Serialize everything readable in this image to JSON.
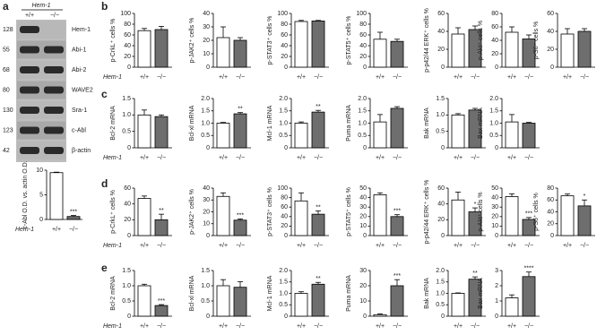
{
  "panel_labels": [
    "a",
    "b",
    "c",
    "d",
    "e"
  ],
  "blot": {
    "group_label": "Hem-1",
    "genotypes": [
      "+/+",
      "−/−"
    ],
    "sizes": [
      128,
      55,
      68,
      80,
      130,
      123,
      42
    ],
    "proteins": [
      "Hem-1",
      "Abi-1",
      "Abi-2",
      "WAVE2",
      "Sra-1",
      "c-Abl",
      "β-actin"
    ]
  },
  "chart_data": [
    {
      "type": "bar",
      "ylabel": "c-Abl O.D. vs. actin O.D.",
      "group_label": "Hem-1",
      "categories": [
        "+/+",
        "−/−"
      ],
      "values": [
        9.5,
        0.6
      ],
      "errors": [
        0.1,
        0.2
      ],
      "sig": "***",
      "colors": [
        "#ffffff",
        "#6e6e6e"
      ],
      "ylim": [
        0,
        10
      ],
      "yticks": [
        0,
        5,
        10
      ]
    },
    {
      "type": "bar",
      "ylabel": "p-CrkL⁺ cells %",
      "group_label": "Hem-1",
      "categories": [
        "+/+",
        "−/−"
      ],
      "values": [
        68,
        70
      ],
      "errors": [
        4,
        6
      ],
      "colors": [
        "#ffffff",
        "#6e6e6e"
      ],
      "ylim": [
        0,
        100
      ],
      "yticks": [
        0,
        20,
        40,
        60,
        80,
        100
      ]
    },
    {
      "type": "bar",
      "ylabel": "p-JAK2⁺ cells %",
      "categories": [
        "+/+",
        "−/−"
      ],
      "values": [
        22,
        20
      ],
      "errors": [
        8,
        2
      ],
      "colors": [
        "#ffffff",
        "#6e6e6e"
      ],
      "ylim": [
        0,
        40
      ],
      "yticks": [
        0,
        10,
        20,
        30,
        40
      ]
    },
    {
      "type": "bar",
      "ylabel": "p-STAT3⁺ cells %",
      "categories": [
        "+/+",
        "−/−"
      ],
      "values": [
        85,
        86
      ],
      "errors": [
        2,
        1
      ],
      "colors": [
        "#ffffff",
        "#6e6e6e"
      ],
      "ylim": [
        0,
        100
      ],
      "yticks": [
        0,
        20,
        40,
        60,
        80,
        100
      ]
    },
    {
      "type": "bar",
      "ylabel": "p-STAT5⁺ cells %",
      "categories": [
        "+/+",
        "−/−"
      ],
      "values": [
        52,
        48
      ],
      "errors": [
        13,
        4
      ],
      "colors": [
        "#ffffff",
        "#6e6e6e"
      ],
      "ylim": [
        0,
        100
      ],
      "yticks": [
        0,
        20,
        40,
        60,
        80,
        100
      ]
    },
    {
      "type": "bar",
      "ylabel": "p-p42/44 ERK⁺ cells %",
      "categories": [
        "+/+",
        "−/−"
      ],
      "values": [
        37,
        42
      ],
      "errors": [
        7,
        4
      ],
      "colors": [
        "#ffffff",
        "#6e6e6e"
      ],
      "ylim": [
        0,
        60
      ],
      "yticks": [
        0,
        20,
        40,
        60
      ]
    },
    {
      "type": "bar",
      "ylabel": "p-Akt⁺ cells %",
      "categories": [
        "+/+",
        "−/−"
      ],
      "values": [
        52,
        42
      ],
      "errors": [
        8,
        6
      ],
      "colors": [
        "#ffffff",
        "#6e6e6e"
      ],
      "ylim": [
        0,
        80
      ],
      "yticks": [
        0,
        20,
        40,
        60,
        80
      ]
    },
    {
      "type": "bar",
      "ylabel": "p-S6⁺ cells %",
      "categories": [
        "+/+",
        "−/−"
      ],
      "values": [
        37,
        40
      ],
      "errors": [
        6,
        3
      ],
      "colors": [
        "#ffffff",
        "#6e6e6e"
      ],
      "ylim": [
        0,
        60
      ],
      "yticks": [
        0,
        20,
        40,
        60
      ]
    },
    {
      "type": "bar",
      "ylabel": "Bcl-2 mRNA",
      "group_label": "Hem-1",
      "categories": [
        "+/+",
        "−/−"
      ],
      "values": [
        1.0,
        0.95
      ],
      "errors": [
        0.15,
        0.05
      ],
      "colors": [
        "#ffffff",
        "#6e6e6e"
      ],
      "ylim": [
        0,
        1.5
      ],
      "yticks": [
        0,
        0.5,
        {
          "value": 1,
          "label": "1.0"
        },
        1.5
      ]
    },
    {
      "type": "bar",
      "ylabel": "Bcl-xl mRNA",
      "categories": [
        "+/+",
        "−/−"
      ],
      "values": [
        1.0,
        1.38
      ],
      "errors": [
        0.03,
        0.05
      ],
      "sig": "**",
      "colors": [
        "#ffffff",
        "#6e6e6e"
      ],
      "ylim": [
        0,
        2
      ],
      "yticks": [
        0,
        0.5,
        {
          "value": 1,
          "label": "1.0"
        },
        1.5,
        {
          "value": 2,
          "label": "2.0"
        }
      ]
    },
    {
      "type": "bar",
      "ylabel": "Mcl-1 mRNA",
      "categories": [
        "+/+",
        "−/−"
      ],
      "values": [
        1.0,
        1.45
      ],
      "errors": [
        0.05,
        0.07
      ],
      "sig": "**",
      "colors": [
        "#ffffff",
        "#6e6e6e"
      ],
      "ylim": [
        0,
        2
      ],
      "yticks": [
        0,
        0.5,
        {
          "value": 1,
          "label": "1.0"
        },
        1.5,
        {
          "value": 2,
          "label": "2.0"
        }
      ]
    },
    {
      "type": "bar",
      "ylabel": "Puma mRNA",
      "categories": [
        "+/+",
        "−/−"
      ],
      "values": [
        1.05,
        1.6
      ],
      "errors": [
        0.3,
        0.07
      ],
      "colors": [
        "#ffffff",
        "#6e6e6e"
      ],
      "ylim": [
        0,
        2
      ],
      "yticks": [
        0,
        0.5,
        {
          "value": 1,
          "label": "1.0"
        },
        1.5,
        {
          "value": 2,
          "label": "2.0"
        }
      ]
    },
    {
      "type": "bar",
      "ylabel": "Bak mRNA",
      "categories": [
        "+/+",
        "−/−"
      ],
      "values": [
        1.0,
        1.15
      ],
      "errors": [
        0.04,
        0.05
      ],
      "colors": [
        "#ffffff",
        "#6e6e6e"
      ],
      "ylim": [
        0,
        1.5
      ],
      "yticks": [
        0,
        0.5,
        {
          "value": 1,
          "label": "1.0"
        },
        1.5
      ]
    },
    {
      "type": "bar",
      "ylabel": "Bax mRNA",
      "categories": [
        "+/+",
        "−/−"
      ],
      "values": [
        1.05,
        1.0
      ],
      "errors": [
        0.3,
        0.03
      ],
      "colors": [
        "#ffffff",
        "#6e6e6e"
      ],
      "ylim": [
        0,
        2
      ],
      "yticks": [
        0,
        0.5,
        {
          "value": 1,
          "label": "1.0"
        },
        1.5,
        {
          "value": 2,
          "label": "2.0"
        }
      ]
    },
    {
      "type": "bar",
      "ylabel": "p-CrkL⁺ cells %",
      "group_label": "Hem-1",
      "categories": [
        "+/+",
        "−/−"
      ],
      "values": [
        47,
        20
      ],
      "errors": [
        3,
        7
      ],
      "sig": "**",
      "colors": [
        "#ffffff",
        "#6e6e6e"
      ],
      "ylim": [
        0,
        60
      ],
      "yticks": [
        0,
        20,
        40,
        60
      ]
    },
    {
      "type": "bar",
      "ylabel": "p-JAK2⁺ cells %",
      "categories": [
        "+/+",
        "−/−"
      ],
      "values": [
        33,
        13
      ],
      "errors": [
        3,
        1
      ],
      "sig": "***",
      "colors": [
        "#ffffff",
        "#6e6e6e"
      ],
      "ylim": [
        0,
        40
      ],
      "yticks": [
        0,
        10,
        20,
        30,
        40
      ]
    },
    {
      "type": "bar",
      "ylabel": "p-STAT3⁺ cells %",
      "categories": [
        "+/+",
        "−/−"
      ],
      "values": [
        73,
        45
      ],
      "errors": [
        17,
        7
      ],
      "sig": "**",
      "colors": [
        "#ffffff",
        "#6e6e6e"
      ],
      "ylim": [
        0,
        100
      ],
      "yticks": [
        0,
        20,
        40,
        60,
        80,
        100
      ]
    },
    {
      "type": "bar",
      "ylabel": "p-STAT5⁺ cells %",
      "categories": [
        "+/+",
        "−/−"
      ],
      "values": [
        43,
        20
      ],
      "errors": [
        2,
        2
      ],
      "sig": "***",
      "colors": [
        "#ffffff",
        "#6e6e6e"
      ],
      "ylim": [
        0,
        50
      ],
      "yticks": [
        0,
        10,
        20,
        30,
        40,
        50
      ]
    },
    {
      "type": "bar",
      "ylabel": "p-p42/44 ERK⁺ cells %",
      "categories": [
        "+/+",
        "−/−"
      ],
      "values": [
        45,
        30
      ],
      "errors": [
        10,
        5
      ],
      "sig": "*",
      "colors": [
        "#ffffff",
        "#6e6e6e"
      ],
      "ylim": [
        0,
        60
      ],
      "yticks": [
        0,
        20,
        40,
        60
      ]
    },
    {
      "type": "bar",
      "ylabel": "p-Akt⁺ cells %",
      "categories": [
        "+/+",
        "−/−"
      ],
      "values": [
        41,
        17
      ],
      "errors": [
        3,
        2
      ],
      "sig": "***",
      "colors": [
        "#ffffff",
        "#6e6e6e"
      ],
      "ylim": [
        0,
        50
      ],
      "yticks": [
        0,
        10,
        20,
        30,
        40,
        50
      ]
    },
    {
      "type": "bar",
      "ylabel": "p-S6⁺ cells %",
      "categories": [
        "+/+",
        "−/−"
      ],
      "values": [
        67,
        50
      ],
      "errors": [
        3,
        10
      ],
      "sig": "*",
      "colors": [
        "#ffffff",
        "#6e6e6e"
      ],
      "ylim": [
        0,
        80
      ],
      "yticks": [
        0,
        20,
        40,
        60,
        80
      ]
    },
    {
      "type": "bar",
      "ylabel": "Bcl-2 mRNA",
      "group_label": "Hem-1",
      "categories": [
        "+/+",
        "−/−"
      ],
      "values": [
        1.0,
        0.35
      ],
      "errors": [
        0.05,
        0.03
      ],
      "sig": "***",
      "colors": [
        "#ffffff",
        "#6e6e6e"
      ],
      "ylim": [
        0,
        1.5
      ],
      "yticks": [
        0,
        0.5,
        {
          "value": 1,
          "label": "1.0"
        },
        1.5
      ]
    },
    {
      "type": "bar",
      "ylabel": "Bcl-xl mRNA",
      "categories": [
        "+/+",
        "−/−"
      ],
      "values": [
        1.0,
        0.95
      ],
      "errors": [
        0.2,
        0.18
      ],
      "colors": [
        "#ffffff",
        "#6e6e6e"
      ],
      "ylim": [
        0,
        1.5
      ],
      "yticks": [
        0,
        0.5,
        {
          "value": 1,
          "label": "1.0"
        },
        1.5
      ]
    },
    {
      "type": "bar",
      "ylabel": "Mcl-1 mRNA",
      "categories": [
        "+/+",
        "−/−"
      ],
      "values": [
        1.0,
        1.4
      ],
      "errors": [
        0.07,
        0.08
      ],
      "sig": "**",
      "colors": [
        "#ffffff",
        "#6e6e6e"
      ],
      "ylim": [
        0,
        2
      ],
      "yticks": [
        0,
        0.5,
        {
          "value": 1,
          "label": "1.0"
        },
        1.5,
        {
          "value": 2,
          "label": "2.0"
        }
      ]
    },
    {
      "type": "bar",
      "ylabel": "Puma mRNA",
      "categories": [
        "+/+",
        "−/−"
      ],
      "values": [
        1,
        20
      ],
      "errors": [
        0.5,
        4
      ],
      "sig": "***",
      "colors": [
        "#ffffff",
        "#6e6e6e"
      ],
      "ylim": [
        0,
        30
      ],
      "yticks": [
        0,
        10,
        20,
        30
      ]
    },
    {
      "type": "bar",
      "ylabel": "Bak mRNA",
      "categories": [
        "+/+",
        "−/−"
      ],
      "values": [
        1.0,
        1.62
      ],
      "errors": [
        0.02,
        0.1
      ],
      "sig": "**",
      "colors": [
        "#ffffff",
        "#6e6e6e"
      ],
      "ylim": [
        0,
        2
      ],
      "yticks": [
        0,
        0.5,
        {
          "value": 1,
          "label": "1.0"
        },
        1.5,
        {
          "value": 2,
          "label": "2.0"
        }
      ]
    },
    {
      "type": "bar",
      "ylabel": "Bax mRNA",
      "categories": [
        "+/+",
        "−/−"
      ],
      "values": [
        1.2,
        2.6
      ],
      "errors": [
        0.2,
        0.3
      ],
      "sig": "****",
      "colors": [
        "#ffffff",
        "#6e6e6e"
      ],
      "ylim": [
        0,
        3
      ],
      "yticks": [
        0,
        1,
        2,
        3
      ]
    }
  ]
}
